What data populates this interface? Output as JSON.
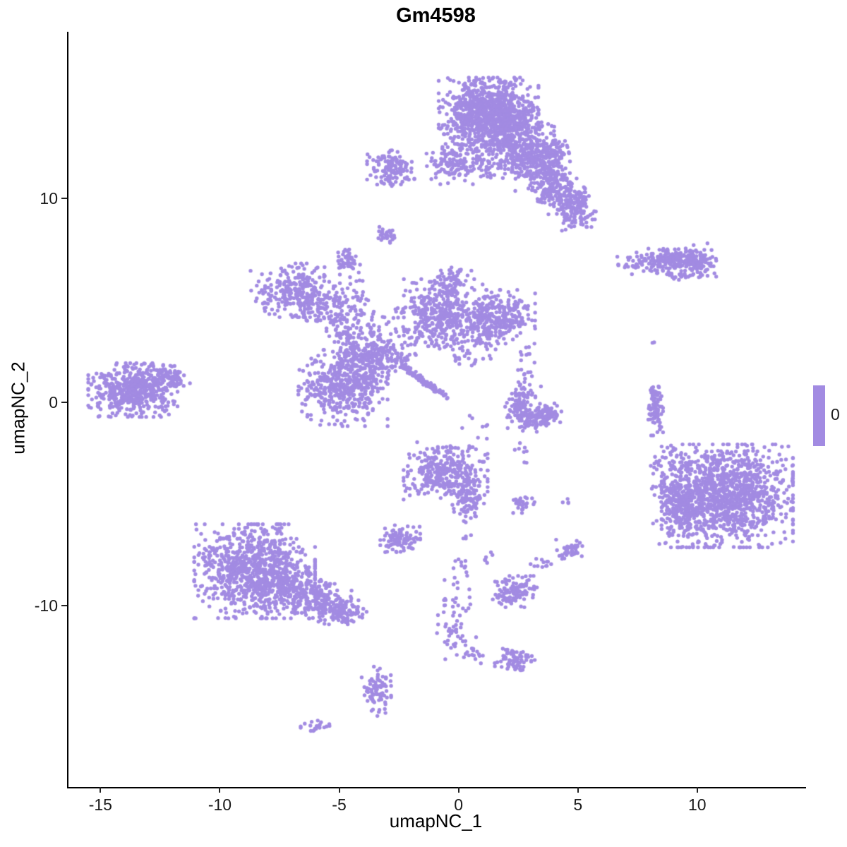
{
  "title": "Gm4598",
  "chart_data": {
    "type": "scatter",
    "title": "Gm4598",
    "xlabel": "umapNC_1",
    "ylabel": "umapNC_2",
    "x_ticks": [
      -15,
      -10,
      -5,
      0,
      5,
      10
    ],
    "y_ticks": [
      -10,
      0,
      10
    ],
    "xlim": [
      -16.4,
      14.5
    ],
    "ylim": [
      -18.9,
      18.2
    ],
    "grid": false,
    "legend": {
      "label": "0",
      "position": "right"
    },
    "point_color": "#A28BE2",
    "point_radius": 2.7,
    "seed": 42,
    "clusters": [
      {
        "x": 1.2,
        "y": 14.3,
        "sx": 0.95,
        "sy": 0.75,
        "n": 850
      },
      {
        "x": 2.3,
        "y": 13.0,
        "sx": 0.75,
        "sy": 0.7,
        "n": 300
      },
      {
        "x": 1.6,
        "y": 12.0,
        "sx": 0.9,
        "sy": 0.5,
        "n": 120,
        "sparse": true
      },
      {
        "x": 3.4,
        "y": 11.7,
        "sx": 0.55,
        "sy": 0.6,
        "n": 200
      },
      {
        "x": 4.1,
        "y": 10.4,
        "sx": 0.8,
        "sy": 0.45,
        "n": 260,
        "angle": -55
      },
      {
        "x": 4.9,
        "y": 9.6,
        "sx": 0.35,
        "sy": 0.45,
        "n": 90
      },
      {
        "x": 3.9,
        "y": 12.4,
        "sx": 0.3,
        "sy": 0.25,
        "n": 60
      },
      {
        "x": -0.3,
        "y": 11.7,
        "sx": 0.5,
        "sy": 0.45,
        "n": 110
      },
      {
        "x": -2.9,
        "y": 11.5,
        "sx": 0.45,
        "sy": 0.4,
        "n": 130
      },
      {
        "x": 0.7,
        "y": 12.6,
        "sx": 0.8,
        "sy": 0.8,
        "n": 60,
        "sparse": true
      },
      {
        "x": -3.1,
        "y": 8.2,
        "sx": 0.18,
        "sy": 0.22,
        "n": 30
      },
      {
        "x": -4.8,
        "y": 6.9,
        "sx": 0.28,
        "sy": 0.3,
        "n": 45
      },
      {
        "x": -6.9,
        "y": 5.5,
        "sx": 0.85,
        "sy": 0.6,
        "n": 270
      },
      {
        "x": -5.8,
        "y": 4.6,
        "sx": 0.5,
        "sy": 0.4,
        "n": 80,
        "sparse": true
      },
      {
        "x": -4.5,
        "y": 5.3,
        "sx": 0.35,
        "sy": 0.45,
        "n": 35,
        "sparse": true
      },
      {
        "x": -4.6,
        "y": 3.0,
        "sx": 0.45,
        "sy": 0.9,
        "n": 160
      },
      {
        "x": -4.9,
        "y": 0.7,
        "sx": 0.85,
        "sy": 0.85,
        "n": 420
      },
      {
        "x": -3.8,
        "y": 2.0,
        "sx": 0.5,
        "sy": 0.6,
        "n": 140
      },
      {
        "x": -2.9,
        "y": 2.3,
        "sx": 0.4,
        "sy": 0.4,
        "n": 50,
        "sparse": true
      },
      {
        "x": -1.7,
        "y": 1.2,
        "sx": 0.7,
        "sy": 0.07,
        "n": 110,
        "angle": -40
      },
      {
        "x": -0.7,
        "y": 4.4,
        "sx": 0.75,
        "sy": 0.75,
        "n": 330
      },
      {
        "x": 1.5,
        "y": 4.2,
        "sx": 0.75,
        "sy": 0.6,
        "n": 300
      },
      {
        "x": -2.2,
        "y": 3.4,
        "sx": 0.8,
        "sy": 0.7,
        "n": 100,
        "sparse": true
      },
      {
        "x": 0.4,
        "y": 3.0,
        "sx": 0.7,
        "sy": 0.6,
        "n": 90,
        "sparse": true
      },
      {
        "x": -0.4,
        "y": 5.9,
        "sx": 0.4,
        "sy": 0.4,
        "n": 60
      },
      {
        "x": -13.7,
        "y": 0.6,
        "sx": 0.85,
        "sy": 0.6,
        "n": 480
      },
      {
        "x": -12.3,
        "y": 1.2,
        "sx": 0.45,
        "sy": 0.3,
        "n": 90
      },
      {
        "x": 2.5,
        "y": 0.0,
        "sx": 0.3,
        "sy": 0.45,
        "n": 70
      },
      {
        "x": 3.1,
        "y": -0.8,
        "sx": 0.5,
        "sy": 0.3,
        "n": 110
      },
      {
        "x": 3.7,
        "y": -0.5,
        "sx": 0.25,
        "sy": 0.3,
        "n": 50
      },
      {
        "x": 2.9,
        "y": 1.4,
        "sx": 0.3,
        "sy": 0.7,
        "n": 25,
        "sparse": true
      },
      {
        "x": -0.6,
        "y": -3.5,
        "sx": 0.8,
        "sy": 0.7,
        "n": 330
      },
      {
        "x": 0.4,
        "y": -4.8,
        "sx": 0.3,
        "sy": 0.5,
        "n": 90
      },
      {
        "x": 2.6,
        "y": -5.0,
        "sx": 0.25,
        "sy": 0.2,
        "n": 30
      },
      {
        "x": -2.5,
        "y": -6.7,
        "sx": 0.38,
        "sy": 0.3,
        "n": 95
      },
      {
        "x": -8.6,
        "y": -8.3,
        "sx": 1.15,
        "sy": 1.05,
        "n": 950
      },
      {
        "x": -6.2,
        "y": -9.6,
        "sx": 1.0,
        "sy": 0.45,
        "n": 280,
        "angle": -22
      },
      {
        "x": -4.9,
        "y": -10.3,
        "sx": 0.45,
        "sy": 0.3,
        "n": 90
      },
      {
        "x": 8.6,
        "y": 7.0,
        "sx": 0.9,
        "sy": 0.28,
        "n": 220,
        "angle": 6
      },
      {
        "x": 9.9,
        "y": 6.9,
        "sx": 0.38,
        "sy": 0.35,
        "n": 90
      },
      {
        "x": 9.1,
        "y": 6.2,
        "sx": 0.25,
        "sy": 0.12,
        "n": 20
      },
      {
        "x": 8.1,
        "y": 2.9,
        "sx": 0.05,
        "sy": 0.05,
        "n": 2
      },
      {
        "x": 8.2,
        "y": -0.2,
        "sx": 0.14,
        "sy": 0.65,
        "n": 80
      },
      {
        "x": 11.2,
        "y": -4.6,
        "sx": 1.25,
        "sy": 1.15,
        "n": 1150
      },
      {
        "x": 9.3,
        "y": -5.2,
        "sx": 0.55,
        "sy": 0.8,
        "n": 220
      },
      {
        "x": 8.8,
        "y": -3.6,
        "sx": 0.5,
        "sy": 0.7,
        "n": 80,
        "sparse": true
      },
      {
        "x": 2.3,
        "y": -9.3,
        "sx": 0.42,
        "sy": 0.35,
        "n": 115
      },
      {
        "x": 4.6,
        "y": -7.3,
        "sx": 0.28,
        "sy": 0.25,
        "n": 45
      },
      {
        "x": 3.4,
        "y": -7.9,
        "sx": 0.2,
        "sy": 0.15,
        "n": 12
      },
      {
        "x": 1.2,
        "y": -7.6,
        "sx": 0.15,
        "sy": 0.15,
        "n": 6
      },
      {
        "x": 0.3,
        "y": -6.6,
        "sx": 0.15,
        "sy": 0.15,
        "n": 4
      },
      {
        "x": -0.1,
        "y": -9.2,
        "sx": 0.35,
        "sy": 0.8,
        "n": 30,
        "sparse": true
      },
      {
        "x": -0.3,
        "y": -11.3,
        "sx": 0.3,
        "sy": 0.6,
        "n": 35
      },
      {
        "x": 0.3,
        "y": -12.2,
        "sx": 0.3,
        "sy": 0.3,
        "n": 20
      },
      {
        "x": 2.3,
        "y": -12.6,
        "sx": 0.38,
        "sy": 0.28,
        "n": 75
      },
      {
        "x": -3.5,
        "y": -14.2,
        "sx": 0.28,
        "sy": 0.55,
        "n": 85
      },
      {
        "x": -6.1,
        "y": -15.9,
        "sx": 0.3,
        "sy": 0.12,
        "n": 20
      },
      {
        "x": 0.6,
        "y": -1.5,
        "sx": 0.3,
        "sy": 0.5,
        "n": 12,
        "sparse": true
      },
      {
        "x": 2.6,
        "y": -2.5,
        "sx": 0.2,
        "sy": 0.3,
        "n": 8,
        "sparse": true
      },
      {
        "x": 4.4,
        "y": -4.9,
        "sx": 0.12,
        "sy": 0.12,
        "n": 4
      }
    ]
  }
}
